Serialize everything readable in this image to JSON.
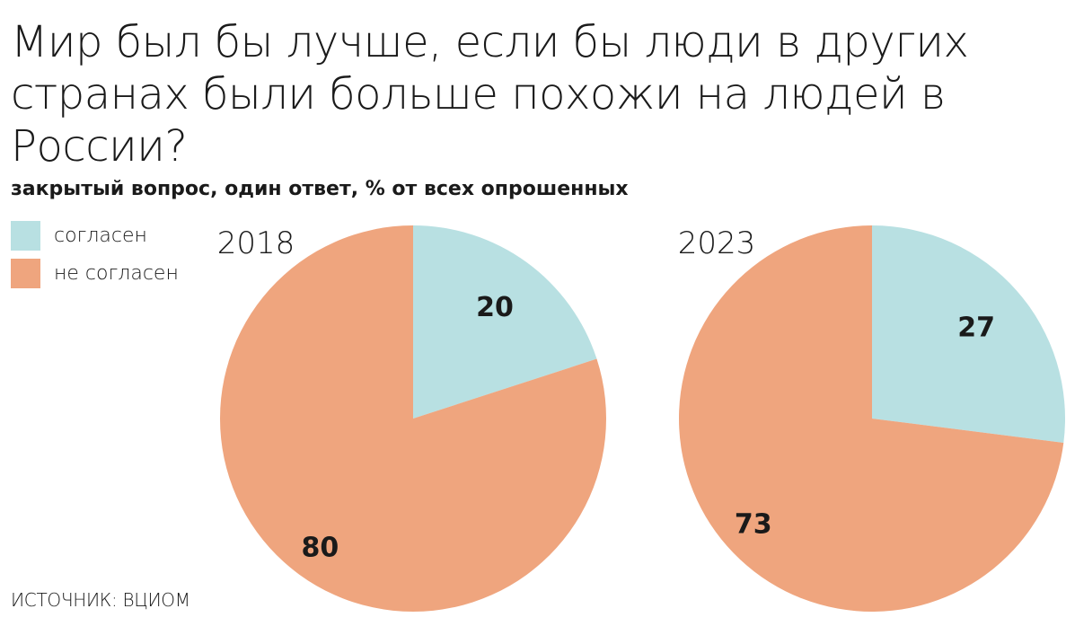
{
  "title": "Мир был бы лучше, если бы люди в других странах были больше похожи на людей в России?",
  "subtitle": "закрытый вопрос, один ответ, % от всех опрошенных",
  "source": "ИСТОЧНИК: ВЦИОМ",
  "legend": [
    {
      "label": "согласен",
      "color": "#b8e0e2"
    },
    {
      "label": "не согласен",
      "color": "#efa57e"
    }
  ],
  "chart_data": [
    {
      "type": "pie",
      "title": "2018",
      "slices": [
        {
          "label": "согласен",
          "value": 20,
          "color": "#b8e0e2"
        },
        {
          "label": "не согласен",
          "value": 80,
          "color": "#efa57e"
        }
      ]
    },
    {
      "type": "pie",
      "title": "2023",
      "slices": [
        {
          "label": "согласен",
          "value": 27,
          "color": "#b8e0e2"
        },
        {
          "label": "не согласен",
          "value": 73,
          "color": "#efa57e"
        }
      ]
    }
  ]
}
